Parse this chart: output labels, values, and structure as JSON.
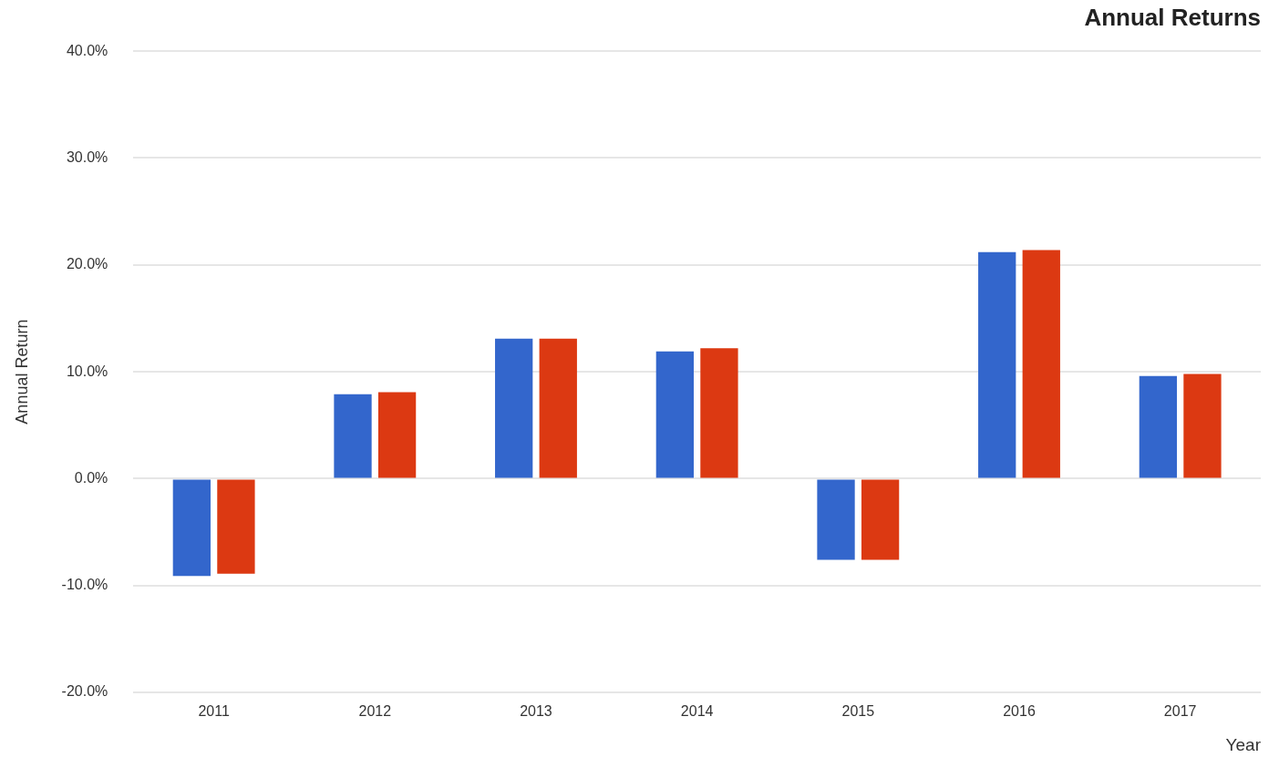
{
  "chart_data": {
    "type": "bar",
    "title": "Annual Returns",
    "xlabel": "Year",
    "ylabel": "Annual Return",
    "categories": [
      "2011",
      "2012",
      "2013",
      "2014",
      "2015",
      "2016",
      "2017"
    ],
    "series": [
      {
        "color": "#3366cc",
        "values": [
          -9.1,
          7.9,
          13.1,
          11.9,
          -7.6,
          21.2,
          9.6
        ]
      },
      {
        "color": "#dc3912",
        "values": [
          -8.9,
          8.1,
          13.1,
          12.2,
          -7.6,
          21.4,
          9.8
        ]
      }
    ],
    "ylim": [
      -20,
      40
    ],
    "yticks": [
      {
        "value": -20,
        "label": "-20.0%"
      },
      {
        "value": -10,
        "label": "-10.0%"
      },
      {
        "value": 0,
        "label": "0.0%"
      },
      {
        "value": 10,
        "label": "10.0%"
      },
      {
        "value": 20,
        "label": "20.0%"
      },
      {
        "value": 30,
        "label": "30.0%"
      },
      {
        "value": 40,
        "label": "40.0%"
      }
    ],
    "grid": "y",
    "legend": false
  }
}
